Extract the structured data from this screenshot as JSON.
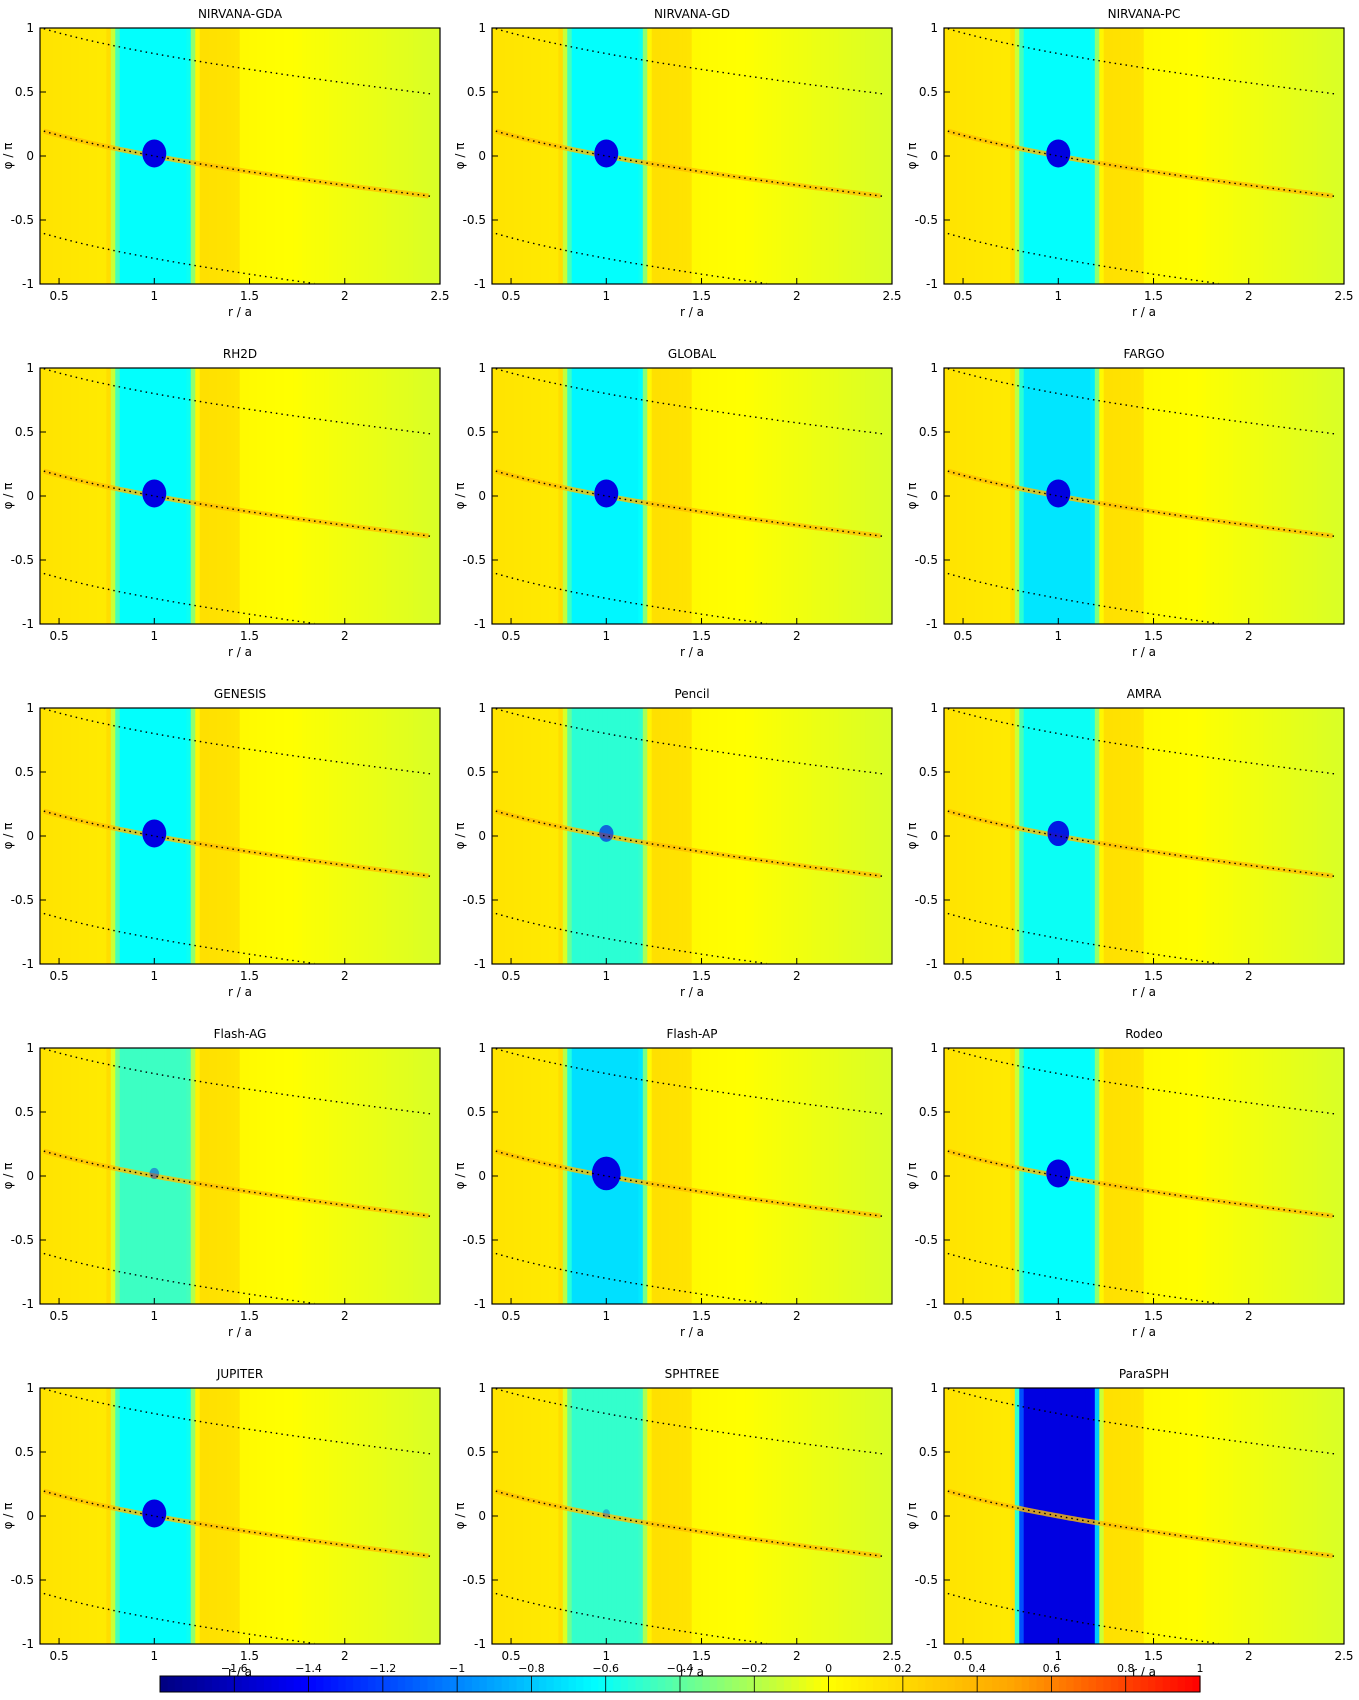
{
  "figure": {
    "xlabel": "r / a",
    "ylabel": "φ / π",
    "x_range": [
      0.4,
      2.5
    ],
    "y_range": [
      -1,
      1
    ]
  },
  "chart_data": [
    {
      "type": "heatmap",
      "title": "NIRVANA-GDA",
      "xlim": [
        0.4,
        2.5
      ],
      "ylim": [
        -1,
        1
      ],
      "xticks": [
        0.5,
        1,
        1.5,
        2,
        2.5
      ],
      "yticks": [
        -1,
        -0.5,
        0,
        0.5,
        1
      ],
      "gap_depth": 0.62,
      "planet_blob": 1.0,
      "outer_wake_depth": -1.25
    },
    {
      "type": "heatmap",
      "title": "NIRVANA-GD",
      "xlim": [
        0.4,
        2.5
      ],
      "ylim": [
        -1,
        1
      ],
      "xticks": [
        0.5,
        1,
        1.5,
        2,
        2.5
      ],
      "yticks": [
        -1,
        -0.5,
        0,
        0.5,
        1
      ],
      "gap_depth": 0.62,
      "planet_blob": 1.0,
      "outer_wake_depth": -1.25
    },
    {
      "type": "heatmap",
      "title": "NIRVANA-PC",
      "xlim": [
        0.4,
        2.5
      ],
      "ylim": [
        -1,
        1
      ],
      "xticks": [
        0.5,
        1,
        1.5,
        2,
        2.5
      ],
      "yticks": [
        -1,
        -0.5,
        0,
        0.5,
        1
      ],
      "gap_depth": 0.62,
      "planet_blob": 1.0,
      "outer_wake_depth": -1.25
    },
    {
      "type": "heatmap",
      "title": "RH2D",
      "xlim": [
        0.4,
        2.5
      ],
      "ylim": [
        -1,
        1
      ],
      "xticks": [
        0.5,
        1,
        1.5,
        2
      ],
      "yticks": [
        -1,
        -0.5,
        0,
        0.5,
        1
      ],
      "gap_depth": 0.62,
      "planet_blob": 1.0,
      "outer_wake_depth": -1.25
    },
    {
      "type": "heatmap",
      "title": "GLOBAL",
      "xlim": [
        0.4,
        2.5
      ],
      "ylim": [
        -1,
        1
      ],
      "xticks": [
        0.5,
        1,
        1.5,
        2
      ],
      "yticks": [
        -1,
        -0.5,
        0,
        0.5,
        1
      ],
      "gap_depth": 0.65,
      "planet_blob": 1.0,
      "outer_wake_depth": -1.25
    },
    {
      "type": "heatmap",
      "title": "FARGO",
      "xlim": [
        0.4,
        2.5
      ],
      "ylim": [
        -1,
        1
      ],
      "xticks": [
        0.5,
        1,
        1.5,
        2
      ],
      "yticks": [
        -1,
        -0.5,
        0,
        0.5,
        1
      ],
      "gap_depth": 0.7,
      "planet_blob": 1.0,
      "outer_wake_depth": -1.25
    },
    {
      "type": "heatmap",
      "title": "GENESIS",
      "xlim": [
        0.4,
        2.5
      ],
      "ylim": [
        -1,
        1
      ],
      "xticks": [
        0.5,
        1,
        1.5,
        2
      ],
      "yticks": [
        -1,
        -0.5,
        0,
        0.5,
        1
      ],
      "gap_depth": 0.62,
      "planet_blob": 1.0,
      "outer_wake_depth": -1.25
    },
    {
      "type": "heatmap",
      "title": "Pencil",
      "xlim": [
        0.4,
        2.5
      ],
      "ylim": [
        -1,
        1
      ],
      "xticks": [
        0.5,
        1,
        1.5,
        2
      ],
      "yticks": [
        -1,
        -0.5,
        0,
        0.5,
        1
      ],
      "gap_depth": 0.52,
      "planet_blob": 0.6,
      "outer_wake_depth": -1.25
    },
    {
      "type": "heatmap",
      "title": "AMRA",
      "xlim": [
        0.4,
        2.5
      ],
      "ylim": [
        -1,
        1
      ],
      "xticks": [
        0.5,
        1,
        1.5,
        2
      ],
      "yticks": [
        -1,
        -0.5,
        0,
        0.5,
        1
      ],
      "gap_depth": 0.6,
      "planet_blob": 0.9,
      "outer_wake_depth": -1.25
    },
    {
      "type": "heatmap",
      "title": "Flash-AG",
      "xlim": [
        0.4,
        2.5
      ],
      "ylim": [
        -1,
        1
      ],
      "xticks": [
        0.5,
        1,
        1.5,
        2
      ],
      "yticks": [
        -1,
        -0.5,
        0,
        0.5,
        1
      ],
      "gap_depth": 0.48,
      "planet_blob": 0.4,
      "outer_wake_depth": -1.25
    },
    {
      "type": "heatmap",
      "title": "Flash-AP",
      "xlim": [
        0.4,
        2.5
      ],
      "ylim": [
        -1,
        1
      ],
      "xticks": [
        0.5,
        1,
        1.5,
        2
      ],
      "yticks": [
        -1,
        -0.5,
        0,
        0.5,
        1
      ],
      "gap_depth": 0.72,
      "planet_blob": 1.2,
      "outer_wake_depth": -1.25
    },
    {
      "type": "heatmap",
      "title": "Rodeo",
      "xlim": [
        0.4,
        2.5
      ],
      "ylim": [
        -1,
        1
      ],
      "xticks": [
        0.5,
        1,
        1.5,
        2
      ],
      "yticks": [
        -1,
        -0.5,
        0,
        0.5,
        1
      ],
      "gap_depth": 0.62,
      "planet_blob": 1.0,
      "outer_wake_depth": -1.25
    },
    {
      "type": "heatmap",
      "title": "JUPITER",
      "xlim": [
        0.4,
        2.5
      ],
      "ylim": [
        -1,
        1
      ],
      "xticks": [
        0.5,
        1,
        1.5,
        2
      ],
      "yticks": [
        -1,
        -0.5,
        0,
        0.5,
        1
      ],
      "gap_depth": 0.62,
      "planet_blob": 1.0,
      "outer_wake_depth": -1.25
    },
    {
      "type": "heatmap",
      "title": "SPHTREE",
      "xlim": [
        0.4,
        2.5
      ],
      "ylim": [
        -1,
        1
      ],
      "xticks": [
        0.5,
        1,
        1.5,
        2,
        2.5
      ],
      "yticks": [
        -1,
        -0.5,
        0,
        0.5,
        1
      ],
      "gap_depth": 0.5,
      "planet_blob": 0.3,
      "outer_wake_depth": -1.25
    },
    {
      "type": "heatmap",
      "title": "ParaSPH",
      "xlim": [
        0.4,
        2.5
      ],
      "ylim": [
        -1,
        1
      ],
      "xticks": [
        0.5,
        1,
        1.5,
        2,
        2.5
      ],
      "yticks": [
        -1,
        -0.5,
        0,
        0.5,
        1
      ],
      "gap_depth": 1.5,
      "planet_blob": 0.2,
      "outer_wake_depth": -1.25
    }
  ],
  "colorbar": {
    "min": -1.8,
    "max": 1.0,
    "tick_values": [
      -1.6,
      -1.4,
      -1.2,
      -1,
      -0.8,
      -0.6,
      -0.4,
      -0.2,
      0,
      0.2,
      0.4,
      0.6,
      0.8,
      1
    ],
    "tick_labels": [
      "−1.6",
      "−1.4",
      "−1.2",
      "−1",
      "−0.8",
      "−0.6",
      "−0.4",
      "−0.2",
      "0",
      "0.2",
      "0.4",
      "0.6",
      "0.8",
      "1"
    ],
    "colormap": [
      "#000080",
      "#0000ff",
      "#00ffff",
      "#ffff00",
      "#ff0000"
    ]
  }
}
